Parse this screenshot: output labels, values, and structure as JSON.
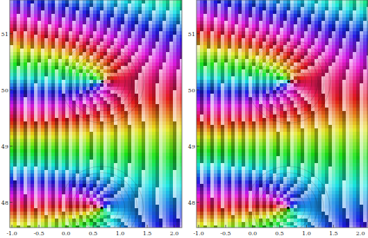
{
  "chart_data": [
    {
      "type": "domain_coloring",
      "xlim": [
        -1.04,
        2.14
      ],
      "ylim": [
        47.55,
        51.6
      ],
      "xticks": [
        {
          "value": -1,
          "label": "-1.0"
        },
        -0.5,
        {
          "value": 0,
          "label": "0.0"
        },
        0.5,
        {
          "value": 1,
          "label": "1.0"
        },
        1.5,
        {
          "value": 2,
          "label": "2.0"
        }
      ],
      "yticks": [
        48,
        49,
        50,
        51
      ],
      "x": [
        0.67,
        0.66
      ],
      "y": [
        50.15,
        47.9
      ]
    },
    {
      "type": "domain_coloring",
      "xlim": [
        -1.04,
        2.14
      ],
      "ylim": [
        47.55,
        51.6
      ],
      "xticks": [
        {
          "value": -1,
          "label": "-1.0"
        },
        -0.5,
        {
          "value": 0,
          "label": "0.0"
        },
        0.5,
        {
          "value": 1,
          "label": "1.0"
        },
        1.5,
        {
          "value": 2,
          "label": "2.0"
        }
      ],
      "yticks": [
        48,
        49,
        50,
        51
      ],
      "x": [
        0.67,
        0.66
      ],
      "y": [
        50.15,
        47.9
      ]
    }
  ]
}
